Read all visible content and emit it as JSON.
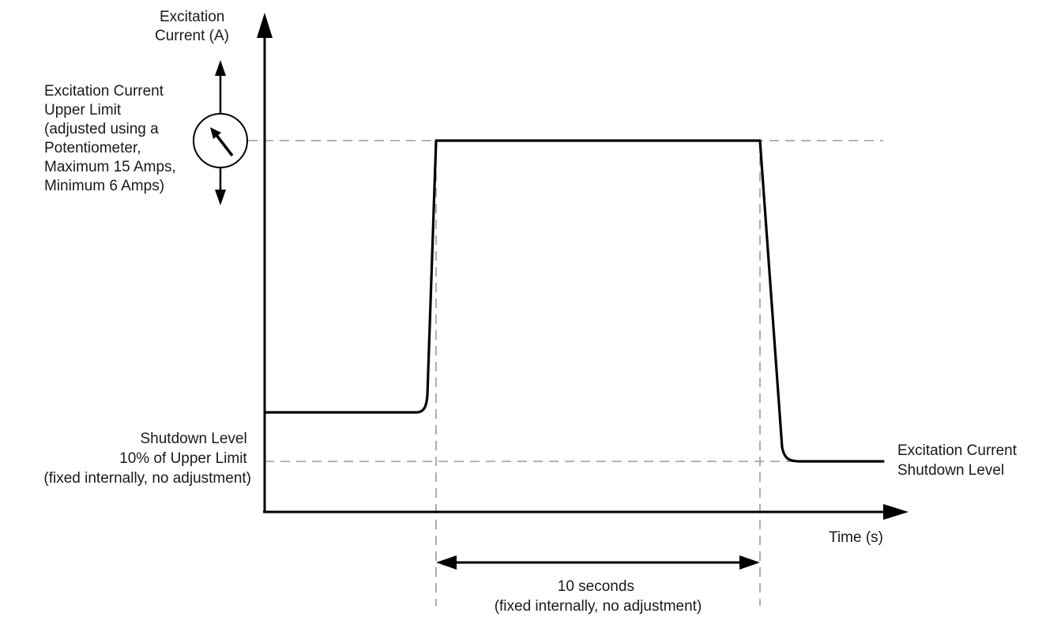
{
  "y_axis_label": [
    "Excitation",
    "Current (A)"
  ],
  "x_axis_label": "Time (s)",
  "upper_limit_label": [
    "Excitation Current",
    "Upper Limit",
    "(adjusted using a",
    "Potentiometer,",
    "Maximum 15 Amps,",
    "Minimum 6 Amps)"
  ],
  "shutdown_level_label": [
    "Shutdown Level",
    "10% of Upper Limit",
    "(fixed internally, no adjustment)"
  ],
  "shutdown_curve_label": [
    "Excitation Current",
    "Shutdown Level"
  ],
  "duration_label": [
    "10 seconds",
    "(fixed internally, no adjustment)"
  ],
  "icons": {
    "potentiometer": "potentiometer-dial-icon",
    "adjust": "up-down-arrow-icon",
    "duration": "double-headed-arrow-icon"
  },
  "colors": {
    "curve": "#000000",
    "guide_lines": "#9a9a9a",
    "text": "#1a1a1a"
  }
}
